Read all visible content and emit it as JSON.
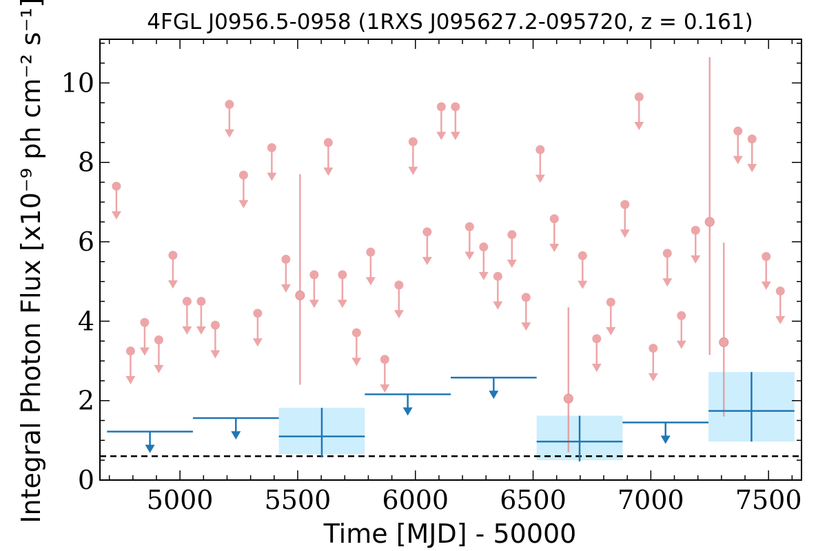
{
  "chart_data": {
    "type": "scatter",
    "title": "4FGL J0956.5-0958 (1RXS J095627.2-095720, z = 0.161)",
    "xlabel": "Time [MJD] - 50000",
    "ylabel": "Integral Photon Flux [x10⁻⁹ ph cm⁻² s⁻¹]",
    "xlim": [
      4660,
      7640
    ],
    "ylim": [
      0,
      11.1
    ],
    "xticks": [
      5000,
      5500,
      6000,
      6500,
      7000,
      7500
    ],
    "yticks": [
      0,
      2,
      4,
      6,
      8,
      10
    ],
    "xtick_labels": [
      "5000",
      "5500",
      "6000",
      "6500",
      "7000",
      "7500"
    ],
    "ytick_labels": [
      "0",
      "2",
      "4",
      "6",
      "8",
      "10"
    ],
    "reference_line": 0.6,
    "grid": false,
    "colors": {
      "short": "#e8898b",
      "long": "#1f77b4",
      "long_band": "#cdeefd",
      "ref_line": "#000000"
    },
    "short_bin_upper_limits": [
      [
        4730,
        7.4
      ],
      [
        4790,
        3.25
      ],
      [
        4850,
        3.97
      ],
      [
        4910,
        3.53
      ],
      [
        4970,
        5.66
      ],
      [
        5030,
        4.5
      ],
      [
        5090,
        4.5
      ],
      [
        5150,
        3.9
      ],
      [
        5210,
        9.46
      ],
      [
        5270,
        7.68
      ],
      [
        5330,
        4.2
      ],
      [
        5390,
        8.37
      ],
      [
        5450,
        5.56
      ],
      [
        5570,
        5.17
      ],
      [
        5630,
        8.5
      ],
      [
        5690,
        5.17
      ],
      [
        5750,
        3.71
      ],
      [
        5810,
        5.74
      ],
      [
        5870,
        3.04
      ],
      [
        5930,
        4.91
      ],
      [
        5990,
        8.52
      ],
      [
        6050,
        6.25
      ],
      [
        6110,
        9.4
      ],
      [
        6170,
        9.4
      ],
      [
        6230,
        6.38
      ],
      [
        6290,
        5.87
      ],
      [
        6350,
        5.13
      ],
      [
        6410,
        6.18
      ],
      [
        6470,
        4.6
      ],
      [
        6530,
        8.32
      ],
      [
        6590,
        6.58
      ],
      [
        6710,
        5.65
      ],
      [
        6770,
        3.56
      ],
      [
        6830,
        4.48
      ],
      [
        6890,
        6.94
      ],
      [
        6950,
        9.65
      ],
      [
        7010,
        3.32
      ],
      [
        7070,
        5.71
      ],
      [
        7130,
        4.14
      ],
      [
        7190,
        6.29
      ],
      [
        7370,
        8.79
      ],
      [
        7430,
        8.59
      ],
      [
        7490,
        5.63
      ],
      [
        7550,
        4.76
      ]
    ],
    "short_bin_detections": [
      {
        "x": 5510,
        "y": 4.65,
        "ylow": 2.4,
        "yhigh": 7.7
      },
      {
        "x": 6650,
        "y": 2.05,
        "ylow": 0.7,
        "yhigh": 4.35
      },
      {
        "x": 7250,
        "y": 6.5,
        "ylow": 3.15,
        "yhigh": 10.65
      },
      {
        "x": 7310,
        "y": 3.47,
        "ylow": 1.6,
        "yhigh": 5.98
      }
    ],
    "long_bin_upper_limits": [
      {
        "x0": 4690,
        "x1": 5055,
        "y": 1.22
      },
      {
        "x0": 5055,
        "x1": 5420,
        "y": 1.56
      },
      {
        "x0": 5785,
        "x1": 6150,
        "y": 2.16
      },
      {
        "x0": 6150,
        "x1": 6515,
        "y": 2.58
      },
      {
        "x0": 6880,
        "x1": 7245,
        "y": 1.45
      }
    ],
    "long_bin_detections": [
      {
        "x0": 5420,
        "x1": 5785,
        "y": 1.1,
        "ylow": 0.57,
        "yhigh": 1.82,
        "band_low": 0.65,
        "band_high": 1.82
      },
      {
        "x0": 6515,
        "x1": 6880,
        "y": 0.97,
        "ylow": 0.47,
        "yhigh": 1.62,
        "band_low": 0.5,
        "band_high": 1.62
      },
      {
        "x0": 7245,
        "x1": 7610,
        "y": 1.74,
        "ylow": 0.97,
        "yhigh": 2.72,
        "band_low": 0.97,
        "band_high": 2.72
      }
    ]
  }
}
